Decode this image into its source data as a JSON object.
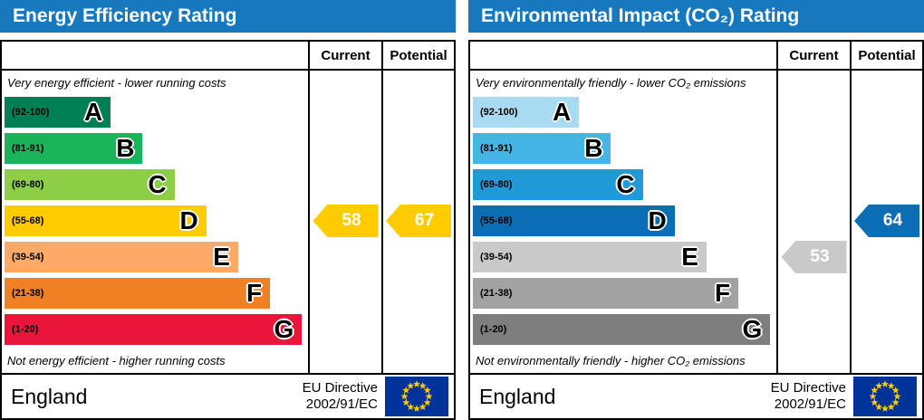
{
  "chart_data": [
    {
      "type": "bar",
      "title": "Energy Efficiency Rating",
      "header_color": "#1878be",
      "columns": [
        "Current",
        "Potential"
      ],
      "top_caption": "Very energy efficient - lower running costs",
      "bottom_caption": "Not energy efficient - higher running costs",
      "scale": [
        1,
        100
      ],
      "bands": [
        {
          "letter": "A",
          "range": "(92-100)",
          "min": 92,
          "max": 100,
          "color": "#008054",
          "width_pct": 35
        },
        {
          "letter": "B",
          "range": "(81-91)",
          "min": 81,
          "max": 91,
          "color": "#19b459",
          "width_pct": 45.5
        },
        {
          "letter": "C",
          "range": "(69-80)",
          "min": 69,
          "max": 80,
          "color": "#8dce46",
          "width_pct": 56
        },
        {
          "letter": "D",
          "range": "(55-68)",
          "min": 55,
          "max": 68,
          "color": "#ffcc00",
          "width_pct": 66.5
        },
        {
          "letter": "E",
          "range": "(39-54)",
          "min": 39,
          "max": 54,
          "color": "#fcaa65",
          "width_pct": 77
        },
        {
          "letter": "F",
          "range": "(21-38)",
          "min": 21,
          "max": 38,
          "color": "#ef8023",
          "width_pct": 87.5
        },
        {
          "letter": "G",
          "range": "(1-20)",
          "min": 1,
          "max": 20,
          "color": "#e9153b",
          "width_pct": 98
        }
      ],
      "current": {
        "value": 58,
        "band": "D",
        "color": "#ffcc00"
      },
      "potential": {
        "value": 67,
        "band": "D",
        "color": "#ffcc00"
      },
      "footer": {
        "region": "England",
        "directive": [
          "EU Directive",
          "2002/91/EC"
        ],
        "flag_bg": "#003399",
        "flag_star_color": "#ffcc00"
      }
    },
    {
      "type": "bar",
      "title": "Environmental Impact (CO₂) Rating",
      "header_color": "#1878be",
      "columns": [
        "Current",
        "Potential"
      ],
      "top_caption": "Very environmentally friendly - lower CO₂ emissions",
      "bottom_caption": "Not environmentally friendly - higher CO₂ emissions",
      "scale": [
        1,
        100
      ],
      "bands": [
        {
          "letter": "A",
          "range": "(92-100)",
          "min": 92,
          "max": 100,
          "color": "#a8dbf2",
          "width_pct": 35
        },
        {
          "letter": "B",
          "range": "(81-91)",
          "min": 81,
          "max": 91,
          "color": "#45b5e6",
          "width_pct": 45.5
        },
        {
          "letter": "C",
          "range": "(69-80)",
          "min": 69,
          "max": 80,
          "color": "#1f9ad7",
          "width_pct": 56
        },
        {
          "letter": "D",
          "range": "(55-68)",
          "min": 55,
          "max": 68,
          "color": "#0b6eb5",
          "width_pct": 66.5
        },
        {
          "letter": "E",
          "range": "(39-54)",
          "min": 39,
          "max": 54,
          "color": "#c9c9c9",
          "width_pct": 77
        },
        {
          "letter": "F",
          "range": "(21-38)",
          "min": 21,
          "max": 38,
          "color": "#a2a2a2",
          "width_pct": 87.5
        },
        {
          "letter": "G",
          "range": "(1-20)",
          "min": 1,
          "max": 20,
          "color": "#7e7e7e",
          "width_pct": 98
        }
      ],
      "current": {
        "value": 53,
        "band": "E",
        "color": "#c9c9c9"
      },
      "potential": {
        "value": 64,
        "band": "D",
        "color": "#0b6eb5"
      },
      "footer": {
        "region": "England",
        "directive": [
          "EU Directive",
          "2002/91/EC"
        ],
        "flag_bg": "#003399",
        "flag_star_color": "#ffcc00"
      }
    }
  ]
}
